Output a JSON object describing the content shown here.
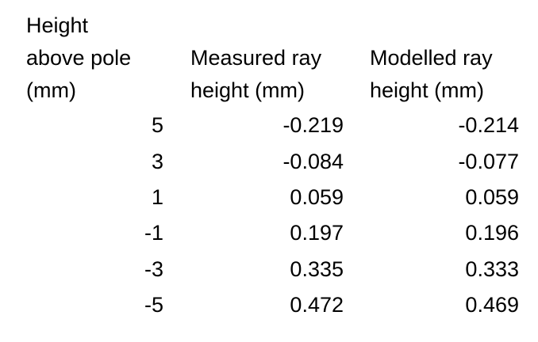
{
  "table": {
    "headers": [
      "Height\nabove pole\n(mm)",
      "Measured ray\nheight (mm)",
      "Modelled ray\nheight (mm)"
    ],
    "rows": [
      [
        "5",
        "-0.219",
        "-0.214"
      ],
      [
        "3",
        "-0.084",
        "-0.077"
      ],
      [
        "1",
        "0.059",
        "0.059"
      ],
      [
        "-1",
        "0.197",
        "0.196"
      ],
      [
        "-3",
        "0.335",
        "0.333"
      ],
      [
        "-5",
        "0.472",
        "0.469"
      ]
    ]
  }
}
